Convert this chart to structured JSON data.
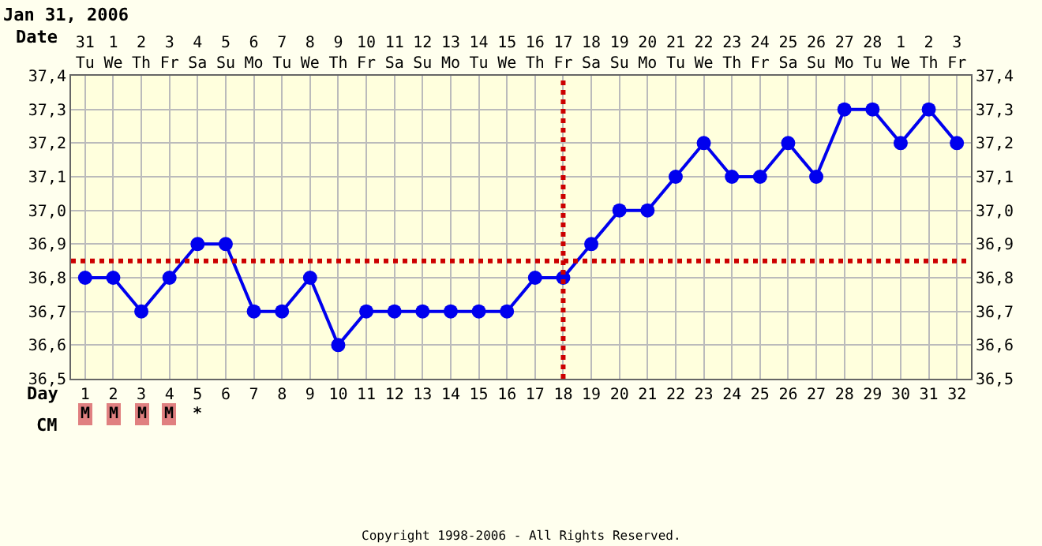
{
  "chart_data": {
    "type": "line",
    "title": "Jan 31, 2006",
    "x": [
      "2006-01-31",
      "2006-02-01",
      "2006-02-02",
      "2006-02-03",
      "2006-02-04",
      "2006-02-05",
      "2006-02-06",
      "2006-02-07",
      "2006-02-08",
      "2006-02-09",
      "2006-02-10",
      "2006-02-11",
      "2006-02-12",
      "2006-02-13",
      "2006-02-14",
      "2006-02-15",
      "2006-02-16",
      "2006-02-17",
      "2006-02-18",
      "2006-02-19",
      "2006-02-20",
      "2006-02-21",
      "2006-02-22",
      "2006-02-23",
      "2006-02-24",
      "2006-02-25",
      "2006-02-26",
      "2006-02-27",
      "2006-02-28",
      "2006-03-01",
      "2006-03-02",
      "2006-03-03"
    ],
    "series": [
      {
        "color": "#0000ee",
        "values": [
          36.8,
          36.8,
          36.7,
          36.8,
          36.9,
          36.9,
          36.7,
          36.7,
          36.8,
          36.6,
          36.7,
          36.7,
          36.7,
          36.7,
          36.7,
          36.7,
          36.8,
          36.8,
          36.9,
          37.0,
          37.0,
          37.1,
          37.2,
          37.1,
          37.1,
          37.2,
          37.1,
          37.3,
          37.3,
          37.2,
          37.3,
          37.2
        ]
      }
    ],
    "xlim": [
      "2006-01-30T12:00",
      "2006-03-03T12:00"
    ],
    "xticks": [
      {
        "value": "2006-01-31",
        "label": "31\nTu"
      },
      {
        "value": "2006-02-01",
        "label": "1\nWe"
      },
      {
        "value": "2006-02-02",
        "label": "2\nTh"
      },
      {
        "value": "2006-02-03",
        "label": "3\nFr"
      },
      {
        "value": "2006-02-04",
        "label": "4\nSa"
      },
      {
        "value": "2006-02-05",
        "label": "5\nSu"
      },
      {
        "value": "2006-02-06",
        "label": "6\nMo"
      },
      {
        "value": "2006-02-07",
        "label": "7\nTu"
      },
      {
        "value": "2006-02-08",
        "label": "8\nWe"
      },
      {
        "value": "2006-02-09",
        "label": "9\nTh"
      },
      {
        "value": "2006-02-10",
        "label": "10\nFr"
      },
      {
        "value": "2006-02-11",
        "label": "11\nSa"
      },
      {
        "value": "2006-02-12",
        "label": "12\nSu"
      },
      {
        "value": "2006-02-13",
        "label": "13\nMo"
      },
      {
        "value": "2006-02-14",
        "label": "14\nTu"
      },
      {
        "value": "2006-02-15",
        "label": "15\nWe"
      },
      {
        "value": "2006-02-16",
        "label": "16\nTh"
      },
      {
        "value": "2006-02-17",
        "label": "17\nFr"
      },
      {
        "value": "2006-02-18",
        "label": "18\nSa"
      },
      {
        "value": "2006-02-19",
        "label": "19\nSu"
      },
      {
        "value": "2006-02-20",
        "label": "20\nMo"
      },
      {
        "value": "2006-02-21",
        "label": "21\nTu"
      },
      {
        "value": "2006-02-22",
        "label": "22\nWe"
      },
      {
        "value": "2006-02-23",
        "label": "23\nTh"
      },
      {
        "value": "2006-02-24",
        "label": "24\nFr"
      },
      {
        "value": "2006-02-25",
        "label": "25\nSa"
      },
      {
        "value": "2006-02-26",
        "label": "26\nSu"
      },
      {
        "value": "2006-02-27",
        "label": "27\nMo"
      },
      {
        "value": "2006-02-28",
        "label": "28\nTu"
      },
      {
        "value": "2006-03-01",
        "label": "1\nWe"
      },
      {
        "value": "2006-03-02",
        "label": "2\nTh"
      },
      {
        "value": "2006-03-03",
        "label": "3\nFr"
      }
    ],
    "x2lim": [
      "2006-01-30T12:00",
      "2006-03-03T12:00"
    ],
    "x2ticks": [
      {
        "value": "2006-01-31",
        "label": "1"
      },
      {
        "value": "2006-02-01",
        "label": "2"
      },
      {
        "value": "2006-02-02",
        "label": "3"
      },
      {
        "value": "2006-02-03",
        "label": "4"
      },
      {
        "value": "2006-02-04",
        "label": "5"
      },
      {
        "value": "2006-02-05",
        "label": "6"
      },
      {
        "value": "2006-02-06",
        "label": "7"
      },
      {
        "value": "2006-02-07",
        "label": "8"
      },
      {
        "value": "2006-02-08",
        "label": "9"
      },
      {
        "value": "2006-02-09",
        "label": "10"
      },
      {
        "value": "2006-02-10",
        "label": "11"
      },
      {
        "value": "2006-02-11",
        "label": "12"
      },
      {
        "value": "2006-02-12",
        "label": "13"
      },
      {
        "value": "2006-02-13",
        "label": "14"
      },
      {
        "value": "2006-02-14",
        "label": "15"
      },
      {
        "value": "2006-02-15",
        "label": "16"
      },
      {
        "value": "2006-02-16",
        "label": "17"
      },
      {
        "value": "2006-02-17",
        "label": "18"
      },
      {
        "value": "2006-02-18",
        "label": "19"
      },
      {
        "value": "2006-02-19",
        "label": "20"
      },
      {
        "value": "2006-02-20",
        "label": "21"
      },
      {
        "value": "2006-02-21",
        "label": "22"
      },
      {
        "value": "2006-02-22",
        "label": "23"
      },
      {
        "value": "2006-02-23",
        "label": "24"
      },
      {
        "value": "2006-02-24",
        "label": "25"
      },
      {
        "value": "2006-02-25",
        "label": "26"
      },
      {
        "value": "2006-02-26",
        "label": "27"
      },
      {
        "value": "2006-02-27",
        "label": "28"
      },
      {
        "value": "2006-02-28",
        "label": "29"
      },
      {
        "value": "2006-03-01",
        "label": "30"
      },
      {
        "value": "2006-03-02",
        "label": "31"
      },
      {
        "value": "2006-03-03",
        "label": "32"
      }
    ],
    "ylim": [
      36.5,
      37.4
    ],
    "yticks": [
      {
        "value": 36.5,
        "label": "36,5"
      },
      {
        "value": 36.6,
        "label": "36,6"
      },
      {
        "value": 36.7,
        "label": "36,7"
      },
      {
        "value": 36.8,
        "label": "36,8"
      },
      {
        "value": 36.9,
        "label": "36,9"
      },
      {
        "value": 37.0,
        "label": "37,0"
      },
      {
        "value": 37.1,
        "label": "37,1"
      },
      {
        "value": 37.2,
        "label": "37,2"
      },
      {
        "value": 37.3,
        "label": "37,3"
      },
      {
        "value": 37.4,
        "label": "37,4"
      }
    ],
    "y2lim": [
      36.5,
      37.4
    ],
    "y2ticks": [
      {
        "value": 36.5,
        "label": "36,5"
      },
      {
        "value": 36.6,
        "label": "36,6"
      },
      {
        "value": 36.7,
        "label": "36,7"
      },
      {
        "value": 36.8,
        "label": "36,8"
      },
      {
        "value": 36.9,
        "label": "36,9"
      },
      {
        "value": 37.0,
        "label": "37,0"
      },
      {
        "value": 37.1,
        "label": "37,1"
      },
      {
        "value": 37.2,
        "label": "37,2"
      },
      {
        "value": 37.3,
        "label": "37,3"
      },
      {
        "value": 37.4,
        "label": "37,4"
      }
    ],
    "ref_lines": [
      {
        "axis": "x",
        "value": "2006-02-17",
        "color": "#cc0000",
        "line_style": "dotted"
      },
      {
        "axis": "y",
        "value": 36.85,
        "color": "#cc0000",
        "line_style": "dotted"
      }
    ],
    "annotations": [
      "Date",
      "Day",
      "CM",
      "Copyright 1998-2006 - All Rights Reserved.",
      "M",
      "M",
      "M",
      "M",
      "*"
    ],
    "grid": true,
    "marker": "circle",
    "line_style": "solid"
  }
}
